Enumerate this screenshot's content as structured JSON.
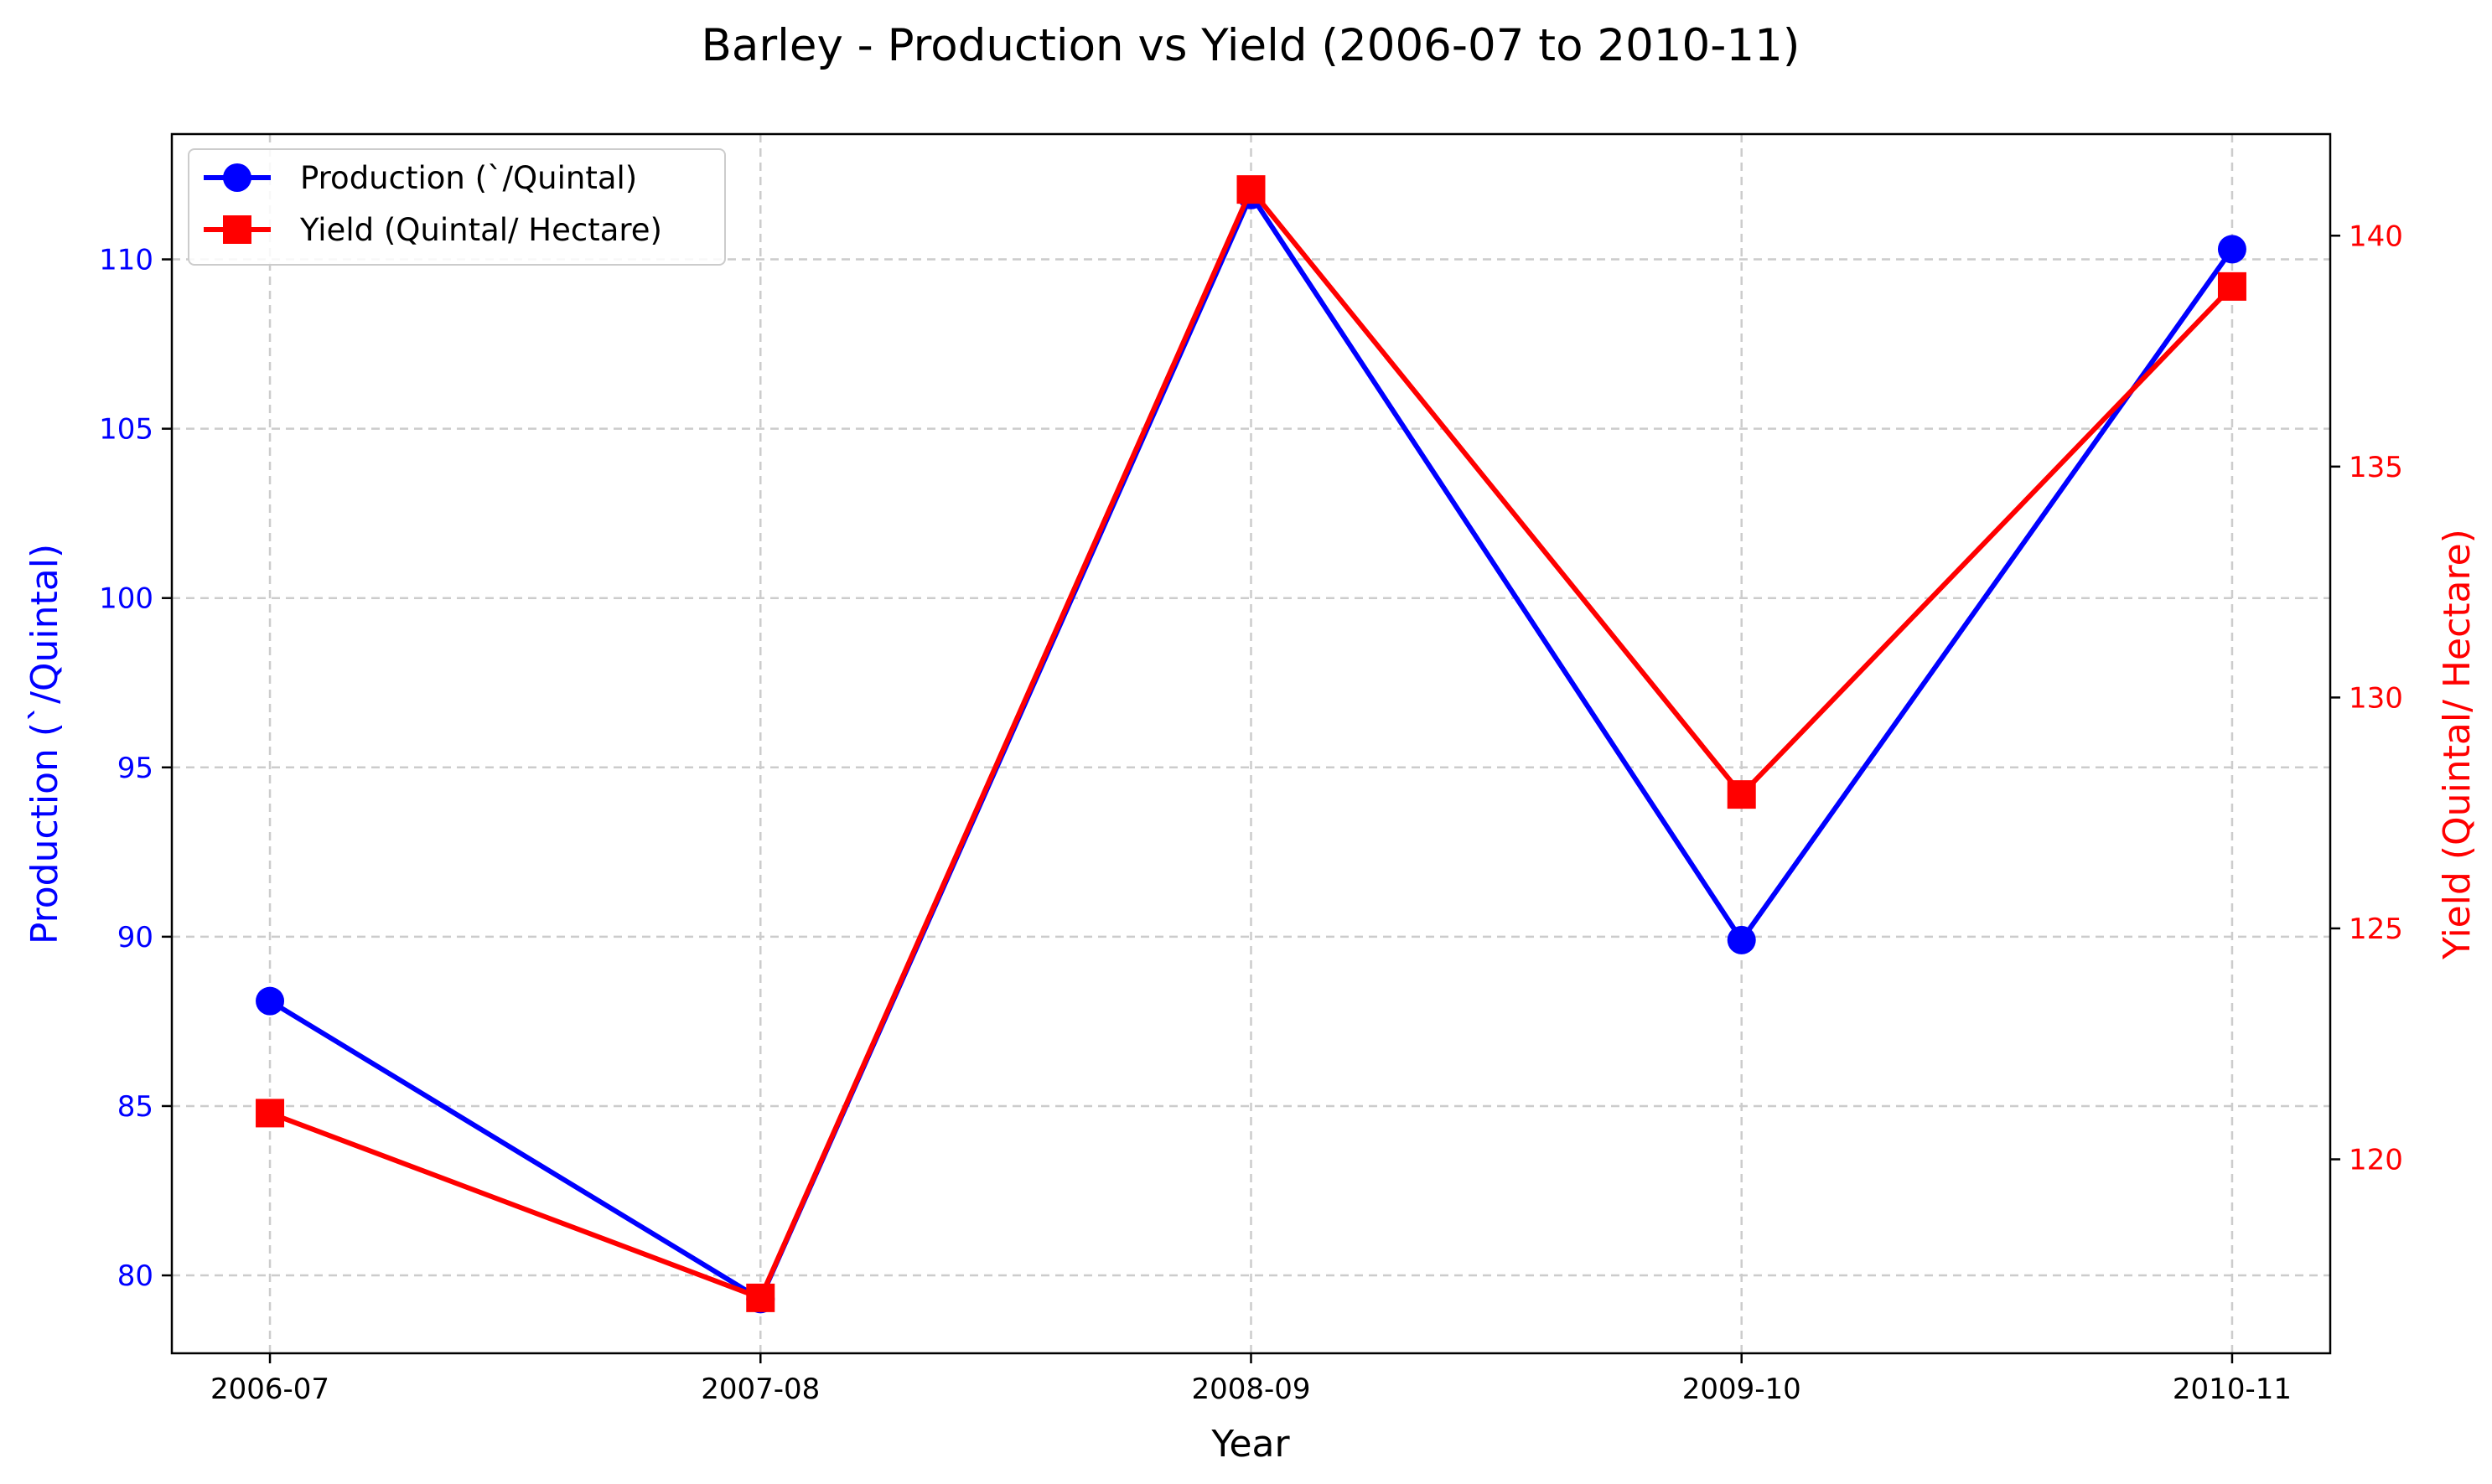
{
  "chart_data": {
    "type": "line",
    "title": "Barley - Production vs Yield (2006-07 to 2010-11)",
    "xlabel": "Year",
    "ylabel_left": "Production (`/Quintal)",
    "ylabel_right": "Yield (Quintal/ Hectare)",
    "categories": [
      "2006-07",
      "2007-08",
      "2008-09",
      "2009-10",
      "2010-11"
    ],
    "series": [
      {
        "name": "Production (`/Quintal)",
        "axis": "left",
        "color": "#0000ff",
        "marker": "circle",
        "values": [
          88.1,
          79.3,
          111.9,
          89.9,
          110.3
        ]
      },
      {
        "name": "Yield (Quintal/ Hectare)",
        "axis": "right",
        "color": "#ff0000",
        "marker": "square",
        "values": [
          121.0,
          117.0,
          141.0,
          127.9,
          138.9
        ]
      }
    ],
    "ylim_left": [
      77.7,
      113.7
    ],
    "ylim_right": [
      115.8,
      142.2
    ],
    "yticks_left": [
      80,
      85,
      90,
      95,
      100,
      105,
      110
    ],
    "yticks_right": [
      120,
      125,
      130,
      135,
      140
    ],
    "left_axis_color": "#0000ff",
    "right_axis_color": "#ff0000",
    "grid": true,
    "legend_position": "upper-left"
  }
}
